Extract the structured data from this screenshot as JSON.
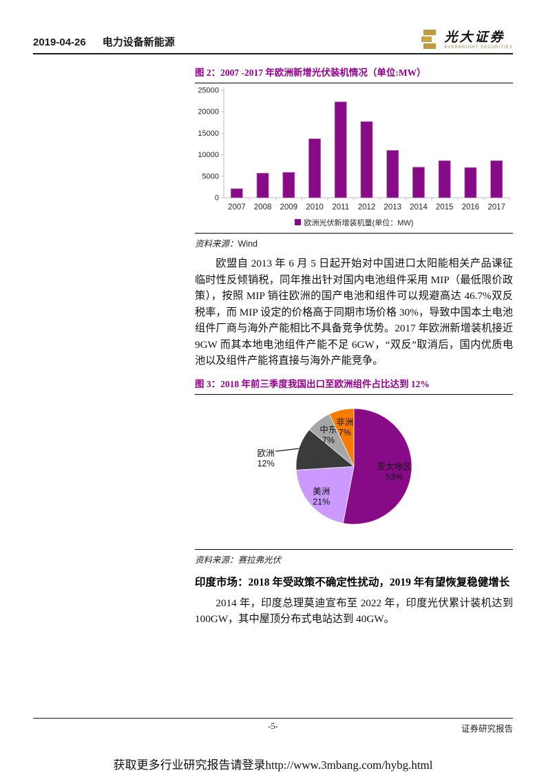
{
  "header": {
    "date": "2019-04-26",
    "section": "电力设备新能源",
    "logo": {
      "brand_cn": "光大证券",
      "brand_en": "EVERBRIGHT SECURITIES",
      "gold": "#C19A3B"
    }
  },
  "figure2": {
    "caption": "图 2：2007 -2017 年欧洲新增光伏装机情况（单位:MW）",
    "source_label": "资料来源：",
    "source": "Wind"
  },
  "paragraph1": "欧盟自 2013 年 6 月 5 日起开始对中国进口太阳能相关产品课征临时性反倾销税，同年推出针对国内电池组件采用 MIP（最低限价政策），按照 MIP 销往欧洲的国产电池和组件可以规避高达 46.7%双反税率，而 MIP 设定的价格高于同期市场价格 30%，导致中国本土电池组件厂商与海外产能相比不具备竞争优势。2017 年欧洲新增装机接近 9GW 而其本地电池组件产能不足 6GW，“双反”取消后，国内优质电池以及组件产能将直接与海外产能竞争。",
  "figure3": {
    "caption": "图 3：2018 年前三季度我国出口至欧洲组件占比达到 12%",
    "source_label": "资料来源：",
    "source": "赛拉弗光伏"
  },
  "india_heading": "印度市场：2018 年受政策不确定性扰动，2019 年有望恢复稳健增长",
  "paragraph2": "2014 年，印度总理莫迪宣布至 2022 年，印度光伏累计装机达到 100GW，其中屋顶分布式电站达到 40GW。",
  "footer": {
    "page_number": "-5-",
    "right_text": "证券研究报告"
  },
  "watermark": "获取更多行业研究报告请登录http://www.3mbang.com/hybg.html",
  "colors": {
    "accent_magenta": "#870B87",
    "caption_magenta": "#97008F",
    "axis_gray": "#BFBFBF"
  },
  "chart_data": [
    {
      "type": "bar",
      "title": "2007-2017年欧洲新增光伏装机情况（单位:MW）",
      "categories": [
        "2007",
        "2008",
        "2009",
        "2010",
        "2011",
        "2012",
        "2013",
        "2014",
        "2015",
        "2016",
        "2017"
      ],
      "values": [
        2100,
        5700,
        5900,
        13700,
        22300,
        17700,
        11000,
        7100,
        8600,
        7000,
        8600
      ],
      "xlabel": "",
      "ylabel": "",
      "ylim": [
        0,
        25000
      ],
      "ytick_step": 5000,
      "grid": false,
      "bar_color": "#870B87",
      "legend": "欧洲光伏新增装机量(单位：MW)",
      "legend_position": "bottom"
    },
    {
      "type": "pie",
      "title": "2018年前三季度我国组件出口地区占比",
      "start_angle_deg": 0,
      "direction": "clockwise",
      "slices": [
        {
          "label": "亚太地区",
          "pct": 53,
          "color": "#870B87",
          "label_r": 0.7,
          "outside": false
        },
        {
          "label": "美洲",
          "pct": 21,
          "color": "#CC99FF",
          "label_r": 0.75,
          "outside": false
        },
        {
          "label": "欧洲",
          "pct": 12,
          "color": "#3B3B3B",
          "label_r": 0.8,
          "outside": true
        },
        {
          "label": "中东",
          "pct": 7,
          "color": "#A6A6A6",
          "label_r": 0.72,
          "outside": false
        },
        {
          "label": "非洲",
          "pct": 7,
          "color": "#F87C00",
          "label_r": 0.72,
          "outside": false
        }
      ]
    }
  ]
}
